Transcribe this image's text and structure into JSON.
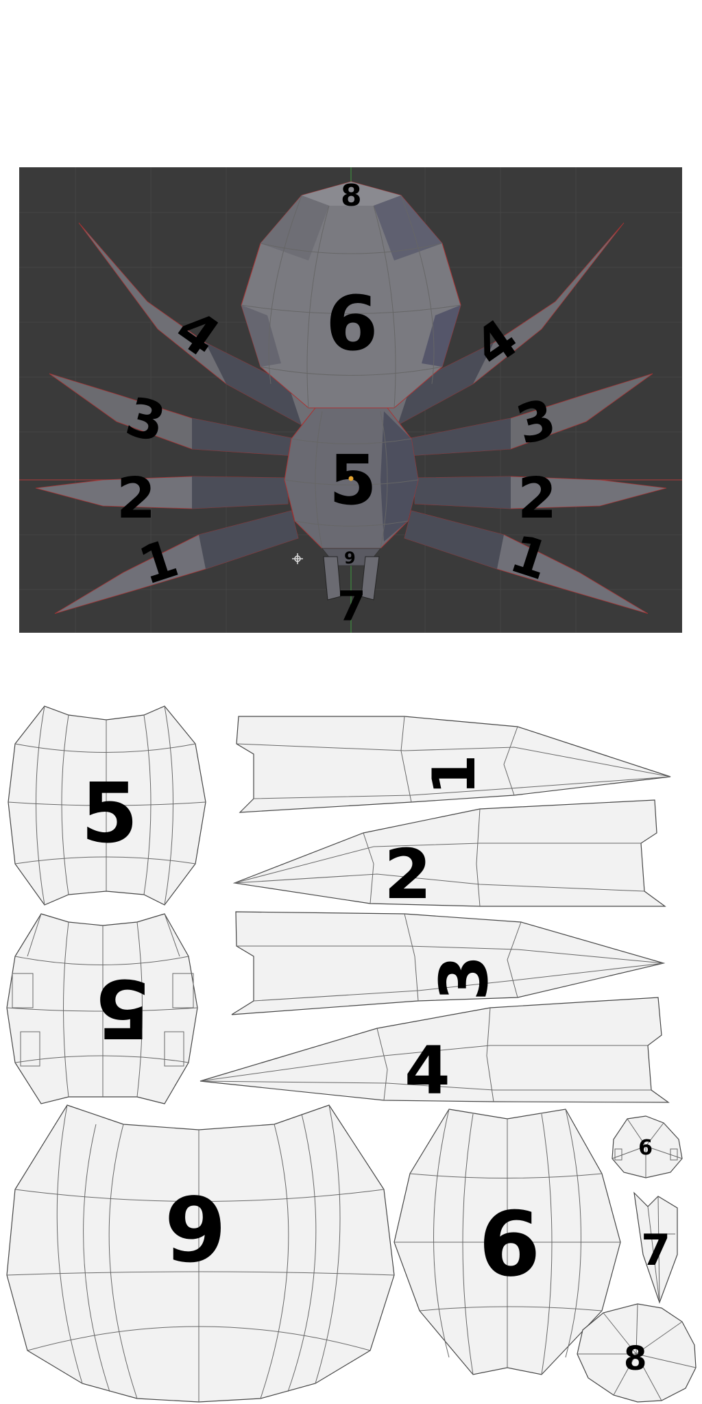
{
  "viewport": {
    "background_color": "#3a3a3a",
    "grid_color": "#444444",
    "axis_x_color": "#9b3a3a",
    "axis_y_color": "#3f8a3f",
    "parts": [
      {
        "id": "leg-1-left",
        "label": "1"
      },
      {
        "id": "leg-2-left",
        "label": "2"
      },
      {
        "id": "leg-3-left",
        "label": "3"
      },
      {
        "id": "leg-4-left",
        "label": "4"
      },
      {
        "id": "leg-1-right",
        "label": "1"
      },
      {
        "id": "leg-2-right",
        "label": "2"
      },
      {
        "id": "leg-3-right",
        "label": "3"
      },
      {
        "id": "leg-4-right",
        "label": "4"
      },
      {
        "id": "abdomen",
        "label": "6"
      },
      {
        "id": "thorax",
        "label": "5"
      },
      {
        "id": "top-cap",
        "label": "8"
      },
      {
        "id": "head",
        "label": "9"
      },
      {
        "id": "fang",
        "label": "7"
      }
    ],
    "cursor_icon": "3d-cursor-icon"
  },
  "uv_layout": {
    "islands": [
      {
        "id": "thorax-front",
        "label": "5"
      },
      {
        "id": "thorax-back",
        "label": "5"
      },
      {
        "id": "leg-1",
        "label": "1"
      },
      {
        "id": "leg-2",
        "label": "2"
      },
      {
        "id": "leg-3",
        "label": "3"
      },
      {
        "id": "leg-4",
        "label": "4"
      },
      {
        "id": "abdomen-mirrored",
        "label": "6"
      },
      {
        "id": "abdomen",
        "label": "6"
      },
      {
        "id": "head",
        "label": "9"
      },
      {
        "id": "fang",
        "label": "7"
      },
      {
        "id": "top-cap",
        "label": "8"
      }
    ]
  }
}
